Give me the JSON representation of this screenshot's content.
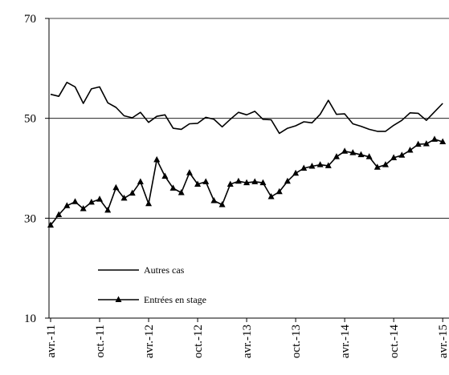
{
  "chart_data": {
    "type": "line",
    "ylim": [
      10,
      70
    ],
    "yticks": [
      "10",
      "30",
      "50",
      "70"
    ],
    "xtick_labels": [
      "avr.-11",
      "oct.-11",
      "avr.-12",
      "oct.-12",
      "avr.-13",
      "oct.-13",
      "avr.-14",
      "oct.-14",
      "avr.-15"
    ],
    "xtick_period_index": [
      0,
      6,
      12,
      18,
      24,
      30,
      36,
      42,
      48
    ],
    "grid": "horizontal",
    "legend_position": "bottom-left",
    "series": [
      {
        "name": "Autres cas",
        "marker": "none",
        "values": [
          54.8,
          54.4,
          57.2,
          56.3,
          53.0,
          55.9,
          56.3,
          53.1,
          52.2,
          50.5,
          50.1,
          51.2,
          49.2,
          50.4,
          50.7,
          48.0,
          47.8,
          48.9,
          49.0,
          50.2,
          49.8,
          48.3,
          49.8,
          51.2,
          50.7,
          51.4,
          49.8,
          49.7,
          47.0,
          48.0,
          48.5,
          49.3,
          49.1,
          50.8,
          53.6,
          50.8,
          50.9,
          48.9,
          48.4,
          47.8,
          47.4,
          47.4,
          48.6,
          49.6,
          51.1,
          51.0,
          49.6,
          51.3,
          53.0
        ]
      },
      {
        "name": "Entrées en stage",
        "marker": "triangle",
        "values": [
          28.6,
          30.7,
          32.5,
          33.3,
          31.9,
          33.2,
          33.8,
          31.6,
          36.1,
          34.0,
          35.0,
          37.3,
          32.9,
          41.7,
          38.4,
          36.0,
          35.1,
          39.1,
          36.8,
          37.3,
          33.5,
          32.7,
          36.8,
          37.4,
          37.1,
          37.3,
          37.1,
          34.3,
          35.3,
          37.4,
          39.0,
          40.0,
          40.4,
          40.7,
          40.5,
          42.3,
          43.4,
          43.1,
          42.7,
          42.3,
          40.2,
          40.7,
          42.1,
          42.6,
          43.6,
          44.8,
          44.9,
          45.8,
          45.3
        ]
      }
    ]
  }
}
